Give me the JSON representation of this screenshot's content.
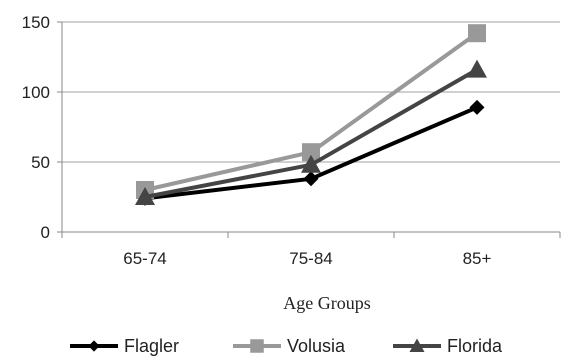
{
  "chart_data": {
    "type": "line",
    "title": "",
    "xlabel": "Age Groups",
    "ylabel": "",
    "categories": [
      "65-74",
      "75-84",
      "85+"
    ],
    "ylim": [
      0,
      150
    ],
    "yticks": [
      0,
      50,
      100,
      150
    ],
    "grid": true,
    "legend_position": "bottom",
    "series": [
      {
        "name": "Flagler",
        "values": [
          24,
          38,
          89
        ],
        "color": "#000000",
        "marker": "diamond"
      },
      {
        "name": "Volusia",
        "values": [
          30,
          57,
          142
        ],
        "color": "#999999",
        "marker": "square"
      },
      {
        "name": "Florida",
        "values": [
          25,
          48,
          116
        ],
        "color": "#444444",
        "marker": "triangle"
      }
    ]
  }
}
